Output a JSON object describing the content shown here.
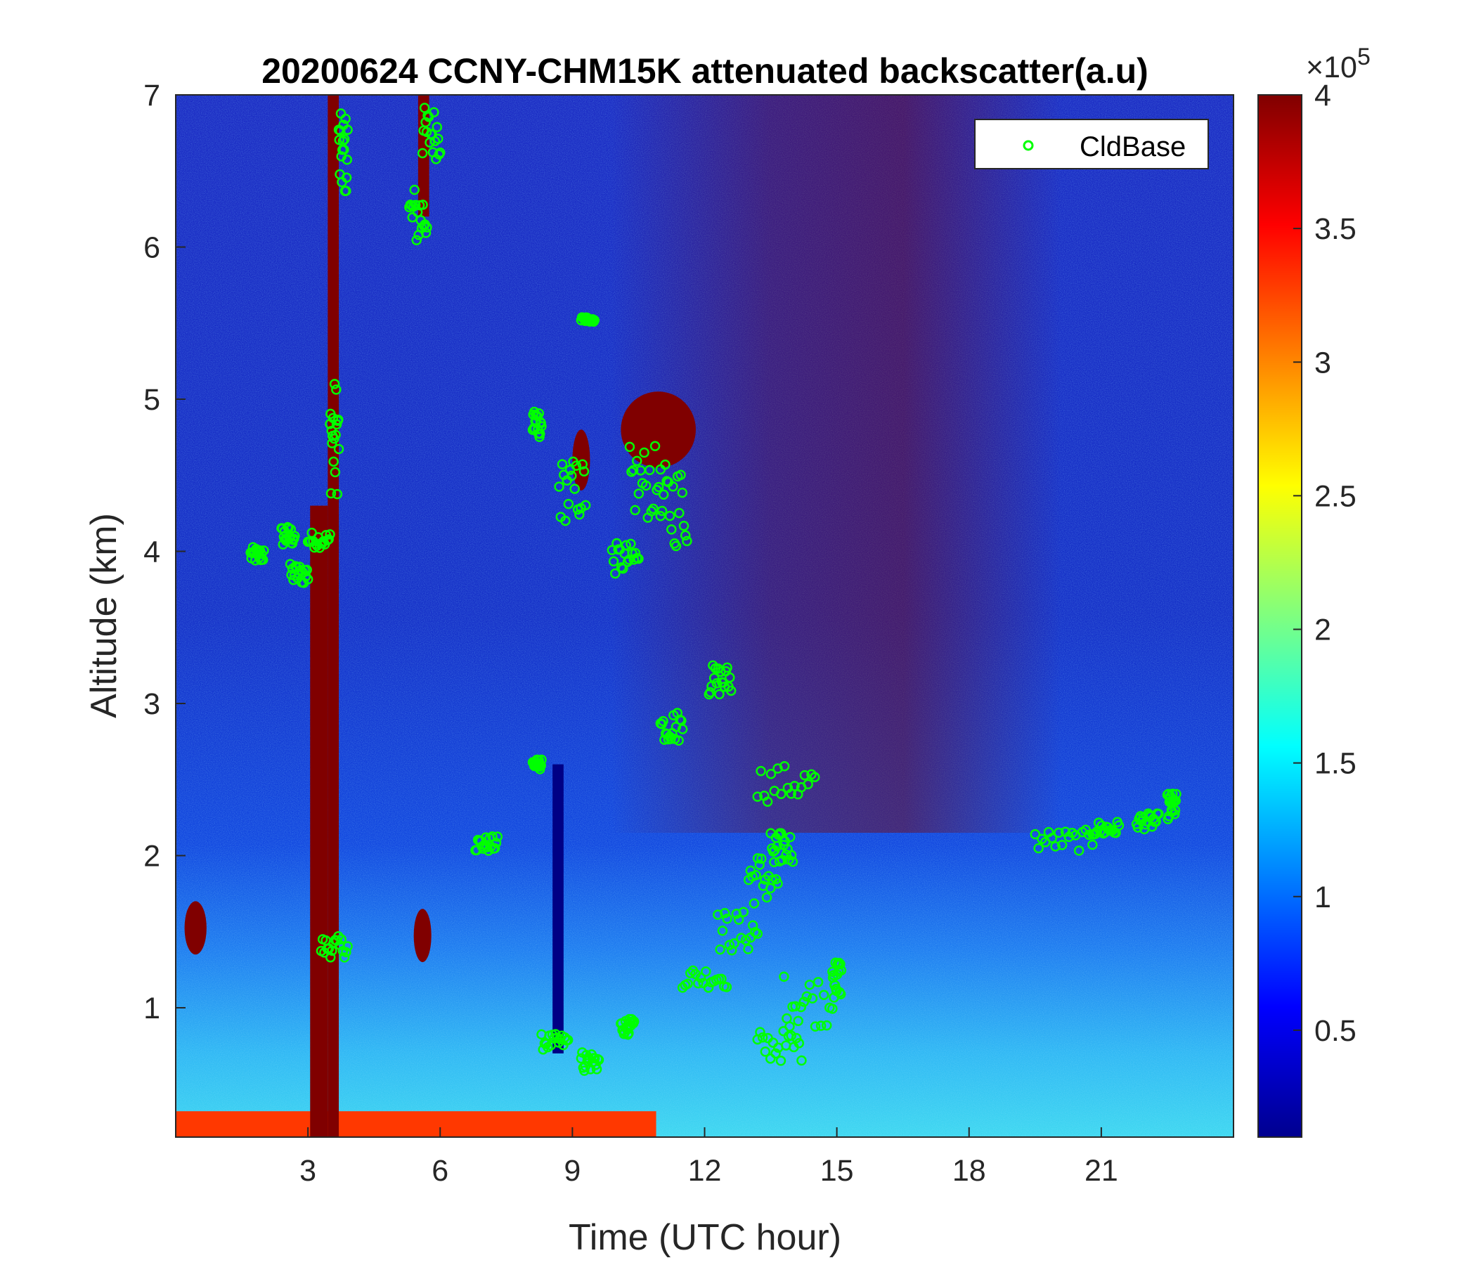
{
  "chart_data": {
    "type": "heatmap",
    "title": "20200624 CCNY-CHM15K attenuated backscatter(a.u)",
    "xlabel": "Time (UTC hour)",
    "ylabel": "Altitude (km)",
    "xlim": [
      0,
      24
    ],
    "ylim": [
      0.15,
      7
    ],
    "xticks": [
      3,
      6,
      9,
      12,
      15,
      18,
      21
    ],
    "yticks": [
      1,
      2,
      3,
      4,
      5,
      6,
      7
    ],
    "colorbar": {
      "colormap": "jet",
      "clim": [
        0.1,
        4
      ],
      "ticks": [
        "0.5",
        "1",
        "1.5",
        "2",
        "2.5",
        "3",
        "3.5",
        "4"
      ],
      "tick_values": [
        0.5,
        1,
        1.5,
        2,
        2.5,
        3,
        3.5,
        4
      ],
      "exponent_base": "×10",
      "exponent_power": "5"
    },
    "legend": {
      "position": "top-right",
      "entries": [
        {
          "name": "CldBase",
          "marker": "circle",
          "color": "#00ff00"
        }
      ]
    },
    "features": [
      {
        "kind": "column",
        "x0": 3.05,
        "x1": 3.45,
        "y0": 0.15,
        "y1": 4.3,
        "level": 4
      },
      {
        "kind": "column",
        "x0": 3.45,
        "x1": 3.7,
        "y0": 0.15,
        "y1": 7,
        "level": 4
      },
      {
        "kind": "column",
        "x0": 5.5,
        "x1": 5.75,
        "y0": 6.2,
        "y1": 7,
        "level": 4
      },
      {
        "kind": "column",
        "x0": 8.55,
        "x1": 8.8,
        "y0": 0.7,
        "y1": 2.6,
        "level": 0.12
      },
      {
        "kind": "blob",
        "x0": 10.1,
        "x1": 11.8,
        "y0": 4.55,
        "y1": 5.05,
        "level": 4
      },
      {
        "kind": "blob",
        "x0": 9.0,
        "x1": 9.4,
        "y0": 4.4,
        "y1": 4.8,
        "level": 4
      },
      {
        "kind": "blob",
        "x0": 5.4,
        "x1": 5.8,
        "y0": 1.3,
        "y1": 1.65,
        "level": 4
      },
      {
        "kind": "blob",
        "x0": 0.2,
        "x1": 0.7,
        "y0": 1.35,
        "y1": 1.7,
        "level": 4
      }
    ],
    "cloud_base": [
      {
        "x": [
          1.7,
          2.0
        ],
        "y": [
          3.9,
          4.05
        ]
      },
      {
        "x": [
          2.4,
          2.7
        ],
        "y": [
          4.0,
          4.2
        ]
      },
      {
        "x": [
          2.6,
          3.0
        ],
        "y": [
          3.75,
          3.95
        ]
      },
      {
        "x": [
          3.0,
          3.5
        ],
        "y": [
          4.0,
          4.15
        ]
      },
      {
        "x": [
          3.5,
          3.7
        ],
        "y": [
          4.2,
          5.3
        ]
      },
      {
        "x": [
          3.7,
          3.9
        ],
        "y": [
          6.2,
          7.0
        ]
      },
      {
        "x": [
          3.3,
          3.9
        ],
        "y": [
          1.3,
          1.5
        ]
      },
      {
        "x": [
          5.3,
          5.7
        ],
        "y": [
          5.9,
          6.5
        ]
      },
      {
        "x": [
          5.6,
          6.0
        ],
        "y": [
          6.5,
          7.0
        ]
      },
      {
        "x": [
          6.8,
          7.3
        ],
        "y": [
          2.0,
          2.15
        ]
      },
      {
        "x": [
          8.1,
          8.3
        ],
        "y": [
          4.7,
          5.0
        ]
      },
      {
        "x": [
          8.1,
          8.3
        ],
        "y": [
          2.55,
          2.65
        ]
      },
      {
        "x": [
          8.3,
          8.9
        ],
        "y": [
          0.7,
          0.85
        ]
      },
      {
        "x": [
          8.7,
          9.3
        ],
        "y": [
          4.1,
          4.7
        ]
      },
      {
        "x": [
          9.2,
          9.5
        ],
        "y": [
          5.5,
          5.55
        ]
      },
      {
        "x": [
          9.2,
          9.6
        ],
        "y": [
          0.55,
          0.75
        ]
      },
      {
        "x": [
          9.9,
          10.5
        ],
        "y": [
          3.8,
          4.1
        ]
      },
      {
        "x": [
          10.1,
          10.4
        ],
        "y": [
          0.8,
          0.95
        ]
      },
      {
        "x": [
          10.3,
          11.0
        ],
        "y": [
          4.1,
          4.8
        ]
      },
      {
        "x": [
          11.0,
          11.6
        ],
        "y": [
          3.9,
          4.7
        ]
      },
      {
        "x": [
          11.0,
          11.5
        ],
        "y": [
          2.7,
          3.0
        ]
      },
      {
        "x": [
          11.5,
          12.5
        ],
        "y": [
          1.1,
          1.3
        ]
      },
      {
        "x": [
          12.3,
          13.2
        ],
        "y": [
          1.3,
          1.7
        ]
      },
      {
        "x": [
          13.0,
          13.7
        ],
        "y": [
          1.6,
          2.1
        ]
      },
      {
        "x": [
          13.5,
          14.0
        ],
        "y": [
          1.9,
          2.2
        ]
      },
      {
        "x": [
          13.2,
          14.5
        ],
        "y": [
          2.3,
          2.65
        ]
      },
      {
        "x": [
          13.2,
          14.2
        ],
        "y": [
          0.6,
          0.9
        ]
      },
      {
        "x": [
          13.8,
          14.9
        ],
        "y": [
          0.8,
          1.3
        ]
      },
      {
        "x": [
          12.1,
          12.6
        ],
        "y": [
          3.0,
          3.3
        ]
      },
      {
        "x": [
          14.9,
          15.1
        ],
        "y": [
          1.0,
          1.4
        ]
      },
      {
        "x": [
          19.5,
          20.8
        ],
        "y": [
          2.0,
          2.2
        ]
      },
      {
        "x": [
          20.8,
          21.4
        ],
        "y": [
          2.1,
          2.25
        ]
      },
      {
        "x": [
          21.8,
          22.3
        ],
        "y": [
          2.15,
          2.3
        ]
      },
      {
        "x": [
          22.5,
          22.7
        ],
        "y": [
          2.2,
          2.45
        ]
      }
    ]
  }
}
